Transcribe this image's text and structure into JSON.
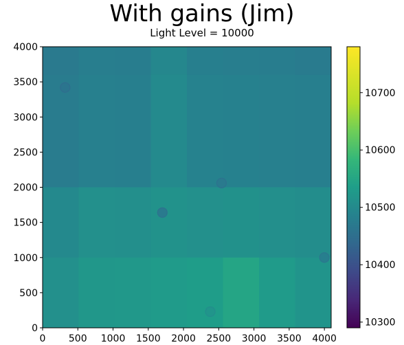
{
  "chart_data": {
    "type": "heatmap",
    "title": "With gains (Jim)",
    "subtitle": "Light Level = 10000",
    "xlabel": "",
    "ylabel": "",
    "xlim": [
      0,
      4096
    ],
    "ylim": [
      0,
      4000
    ],
    "x_ticks": [
      0,
      500,
      1000,
      1500,
      2000,
      2500,
      3000,
      3500,
      4000
    ],
    "y_ticks": [
      0,
      500,
      1000,
      1500,
      2000,
      2500,
      3000,
      3500,
      4000
    ],
    "colorbar": {
      "colormap": "viridis",
      "range": [
        10290,
        10780
      ],
      "ticks": [
        10300,
        10400,
        10500,
        10600,
        10700
      ]
    },
    "cells": [
      {
        "x": [
          0,
          512
        ],
        "y": [
          3600,
          4000
        ],
        "value": 10470
      },
      {
        "x": [
          512,
          1024
        ],
        "y": [
          3600,
          4000
        ],
        "value": 10478
      },
      {
        "x": [
          1024,
          1536
        ],
        "y": [
          3600,
          4000
        ],
        "value": 10476
      },
      {
        "x": [
          1536,
          2048
        ],
        "y": [
          3600,
          4000
        ],
        "value": 10494
      },
      {
        "x": [
          2048,
          2560
        ],
        "y": [
          3600,
          4000
        ],
        "value": 10480
      },
      {
        "x": [
          2560,
          3072
        ],
        "y": [
          3600,
          4000
        ],
        "value": 10478
      },
      {
        "x": [
          3072,
          3584
        ],
        "y": [
          3600,
          4000
        ],
        "value": 10476
      },
      {
        "x": [
          3584,
          4096
        ],
        "y": [
          3600,
          4000
        ],
        "value": 10472
      },
      {
        "x": [
          0,
          512
        ],
        "y": [
          2000,
          3600
        ],
        "value": 10474
      },
      {
        "x": [
          512,
          1024
        ],
        "y": [
          2000,
          3600
        ],
        "value": 10482
      },
      {
        "x": [
          1024,
          1536
        ],
        "y": [
          2000,
          3600
        ],
        "value": 10480
      },
      {
        "x": [
          1536,
          2048
        ],
        "y": [
          2000,
          3600
        ],
        "value": 10500
      },
      {
        "x": [
          2048,
          2560
        ],
        "y": [
          2000,
          3600
        ],
        "value": 10486
      },
      {
        "x": [
          2560,
          3072
        ],
        "y": [
          2000,
          3600
        ],
        "value": 10484
      },
      {
        "x": [
          3072,
          3584
        ],
        "y": [
          2000,
          3600
        ],
        "value": 10482
      },
      {
        "x": [
          3584,
          4096
        ],
        "y": [
          2000,
          3600
        ],
        "value": 10480
      },
      {
        "x": [
          0,
          512
        ],
        "y": [
          1000,
          2000
        ],
        "value": 10498
      },
      {
        "x": [
          512,
          1024
        ],
        "y": [
          1000,
          2000
        ],
        "value": 10510
      },
      {
        "x": [
          1024,
          1536
        ],
        "y": [
          1000,
          2000
        ],
        "value": 10508
      },
      {
        "x": [
          1536,
          2048
        ],
        "y": [
          1000,
          2000
        ],
        "value": 10514
      },
      {
        "x": [
          2048,
          2560
        ],
        "y": [
          1000,
          2000
        ],
        "value": 10510
      },
      {
        "x": [
          2560,
          3072
        ],
        "y": [
          1000,
          2000
        ],
        "value": 10512
      },
      {
        "x": [
          3072,
          3584
        ],
        "y": [
          1000,
          2000
        ],
        "value": 10508
      },
      {
        "x": [
          3584,
          4096
        ],
        "y": [
          1000,
          2000
        ],
        "value": 10506
      },
      {
        "x": [
          0,
          512
        ],
        "y": [
          0,
          1000
        ],
        "value": 10510
      },
      {
        "x": [
          512,
          1024
        ],
        "y": [
          0,
          1000
        ],
        "value": 10522
      },
      {
        "x": [
          1024,
          1536
        ],
        "y": [
          0,
          1000
        ],
        "value": 10524
      },
      {
        "x": [
          1536,
          2048
        ],
        "y": [
          0,
          1000
        ],
        "value": 10530
      },
      {
        "x": [
          2048,
          2560
        ],
        "y": [
          0,
          1000
        ],
        "value": 10534
      },
      {
        "x": [
          2560,
          3072
        ],
        "y": [
          0,
          1000
        ],
        "value": 10548
      },
      {
        "x": [
          3072,
          3584
        ],
        "y": [
          0,
          1000
        ],
        "value": 10530
      },
      {
        "x": [
          3584,
          4096
        ],
        "y": [
          0,
          1000
        ],
        "value": 10518
      }
    ],
    "spots": [
      {
        "x": 1700,
        "y": 1640,
        "value": 10470
      },
      {
        "x": 2540,
        "y": 2060,
        "value": 10470
      },
      {
        "x": 320,
        "y": 3420,
        "value": 10462
      },
      {
        "x": 4000,
        "y": 1000,
        "value": 10480
      },
      {
        "x": 2380,
        "y": 230,
        "value": 10520
      }
    ]
  }
}
